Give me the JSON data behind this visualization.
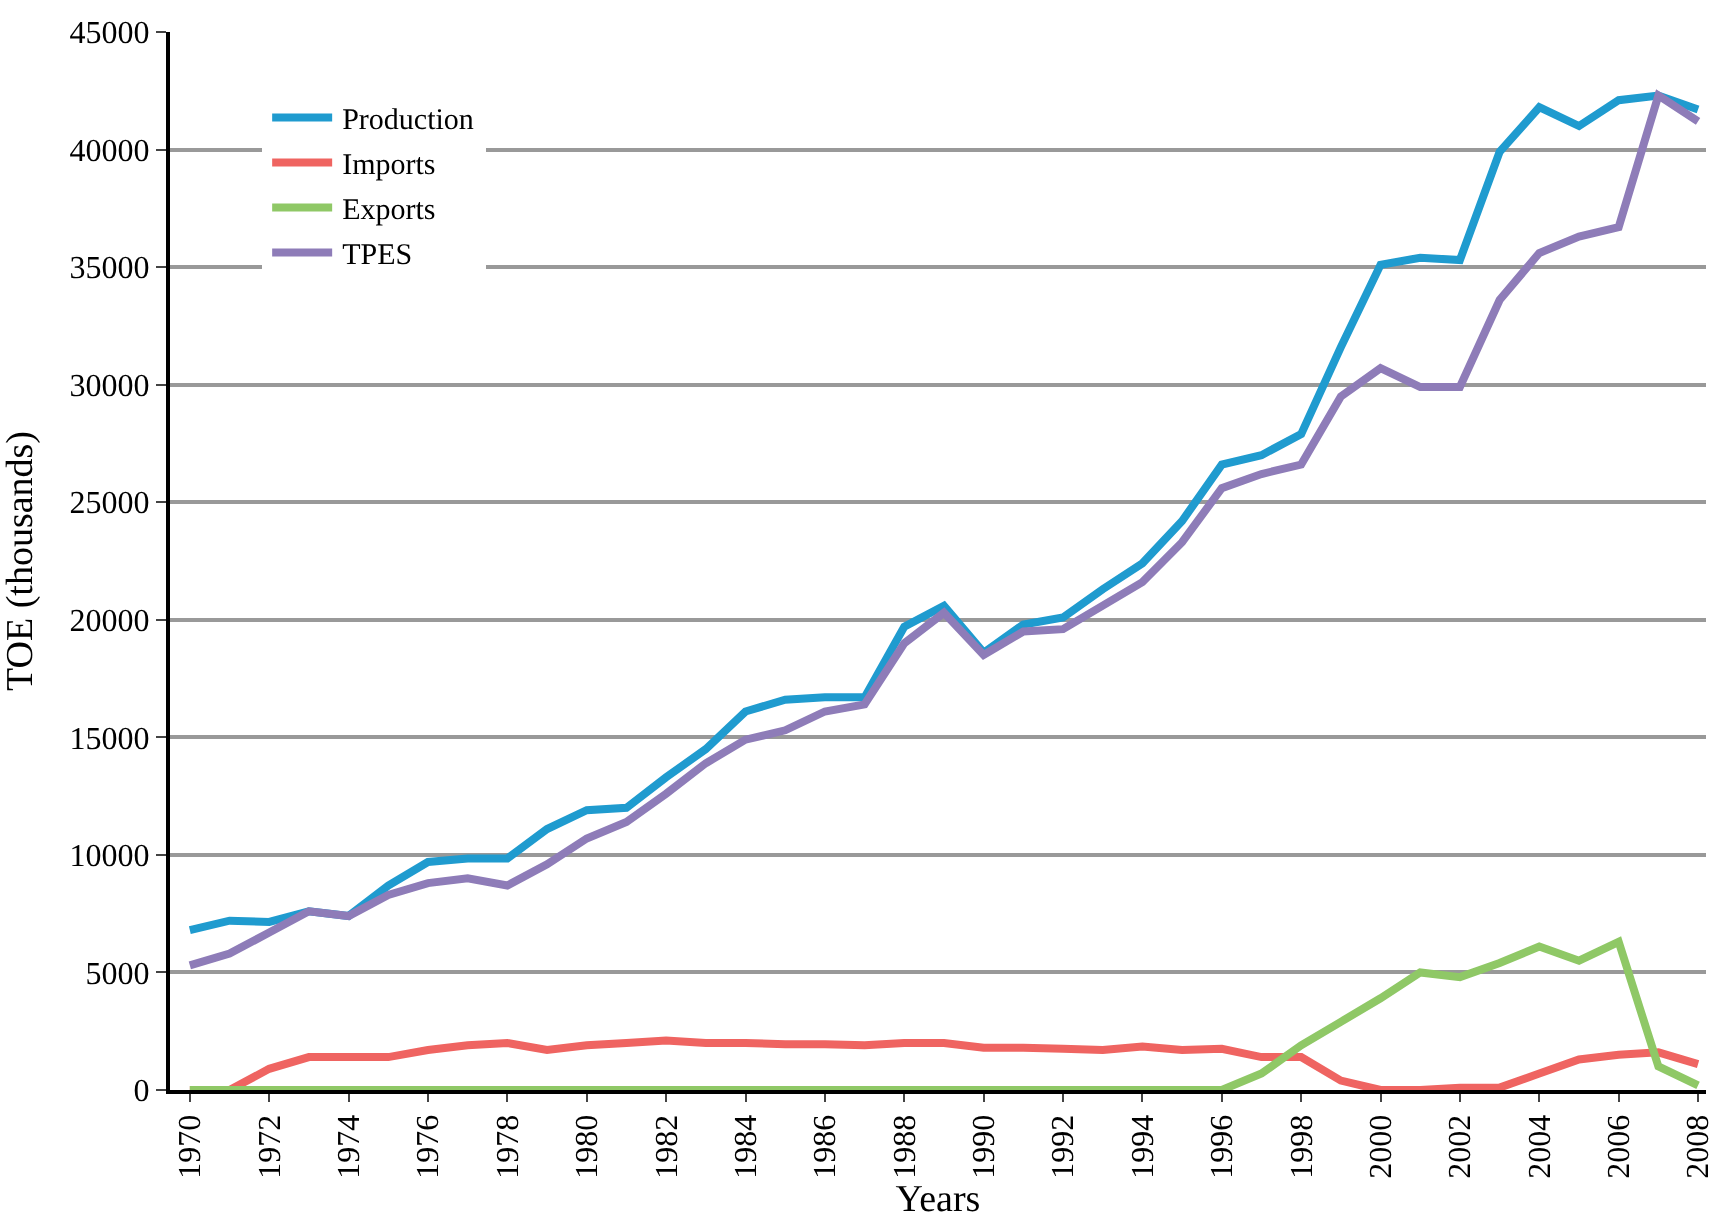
{
  "chart_data": {
    "type": "line",
    "xlabel": "Years",
    "ylabel": "TOE (thousands)",
    "x": [
      1970,
      1971,
      1972,
      1973,
      1974,
      1975,
      1976,
      1977,
      1978,
      1979,
      1980,
      1981,
      1982,
      1983,
      1984,
      1985,
      1986,
      1987,
      1988,
      1989,
      1990,
      1991,
      1992,
      1993,
      1994,
      1995,
      1996,
      1997,
      1998,
      1999,
      2000,
      2001,
      2002,
      2003,
      2004,
      2005,
      2006,
      2007,
      2008
    ],
    "series": [
      {
        "name": "Production",
        "color": "#1f9bcf",
        "values": [
          6800,
          7200,
          7150,
          7600,
          7400,
          8700,
          9700,
          9850,
          9850,
          11100,
          11900,
          12000,
          13300,
          14500,
          16100,
          16600,
          16700,
          16700,
          19700,
          20600,
          18600,
          19800,
          20100,
          21300,
          22400,
          24200,
          26600,
          27000,
          27900,
          31600,
          35100,
          35400,
          35300,
          39900,
          41800,
          41000,
          42100,
          42300,
          41700
        ]
      },
      {
        "name": "Imports",
        "color": "#ef6461",
        "values": [
          0,
          0,
          900,
          1400,
          1400,
          1400,
          1700,
          1900,
          2000,
          1700,
          1900,
          2000,
          2100,
          2000,
          2000,
          1950,
          1950,
          1900,
          2000,
          2000,
          1800,
          1800,
          1750,
          1700,
          1850,
          1700,
          1750,
          1400,
          1400,
          400,
          0,
          0,
          100,
          100,
          700,
          1300,
          1500,
          1600,
          1100
        ]
      },
      {
        "name": "Exports",
        "color": "#8fc866",
        "values": [
          0,
          0,
          0,
          0,
          0,
          0,
          0,
          0,
          0,
          0,
          0,
          0,
          0,
          0,
          0,
          0,
          0,
          0,
          0,
          0,
          0,
          0,
          0,
          0,
          0,
          0,
          0,
          700,
          1900,
          2900,
          3900,
          5000,
          4800,
          5400,
          6100,
          5500,
          6300,
          1000,
          200
        ]
      },
      {
        "name": "TPES",
        "color": "#8e7cb8",
        "values": [
          5300,
          5800,
          6700,
          7600,
          7400,
          8300,
          8800,
          9000,
          8700,
          9600,
          10700,
          11400,
          12600,
          13900,
          14900,
          15300,
          16100,
          16400,
          19000,
          20300,
          18500,
          19500,
          19600,
          20600,
          21600,
          23300,
          25600,
          26200,
          26600,
          29500,
          30700,
          29900,
          29900,
          33600,
          35600,
          36300,
          36700,
          42300,
          41200
        ]
      }
    ],
    "xlim": [
      1969.5,
      2008.2
    ],
    "xticks": [
      1970,
      1972,
      1974,
      1976,
      1978,
      1980,
      1982,
      1984,
      1986,
      1988,
      1990,
      1992,
      1994,
      1996,
      1998,
      2000,
      2002,
      2004,
      2006,
      2008
    ],
    "ylim": [
      0,
      45000
    ],
    "yticks": [
      0,
      5000,
      10000,
      15000,
      20000,
      25000,
      30000,
      35000,
      40000,
      45000
    ],
    "grid": "y",
    "legend": "top left",
    "marker": "none",
    "line_style": "solid"
  }
}
